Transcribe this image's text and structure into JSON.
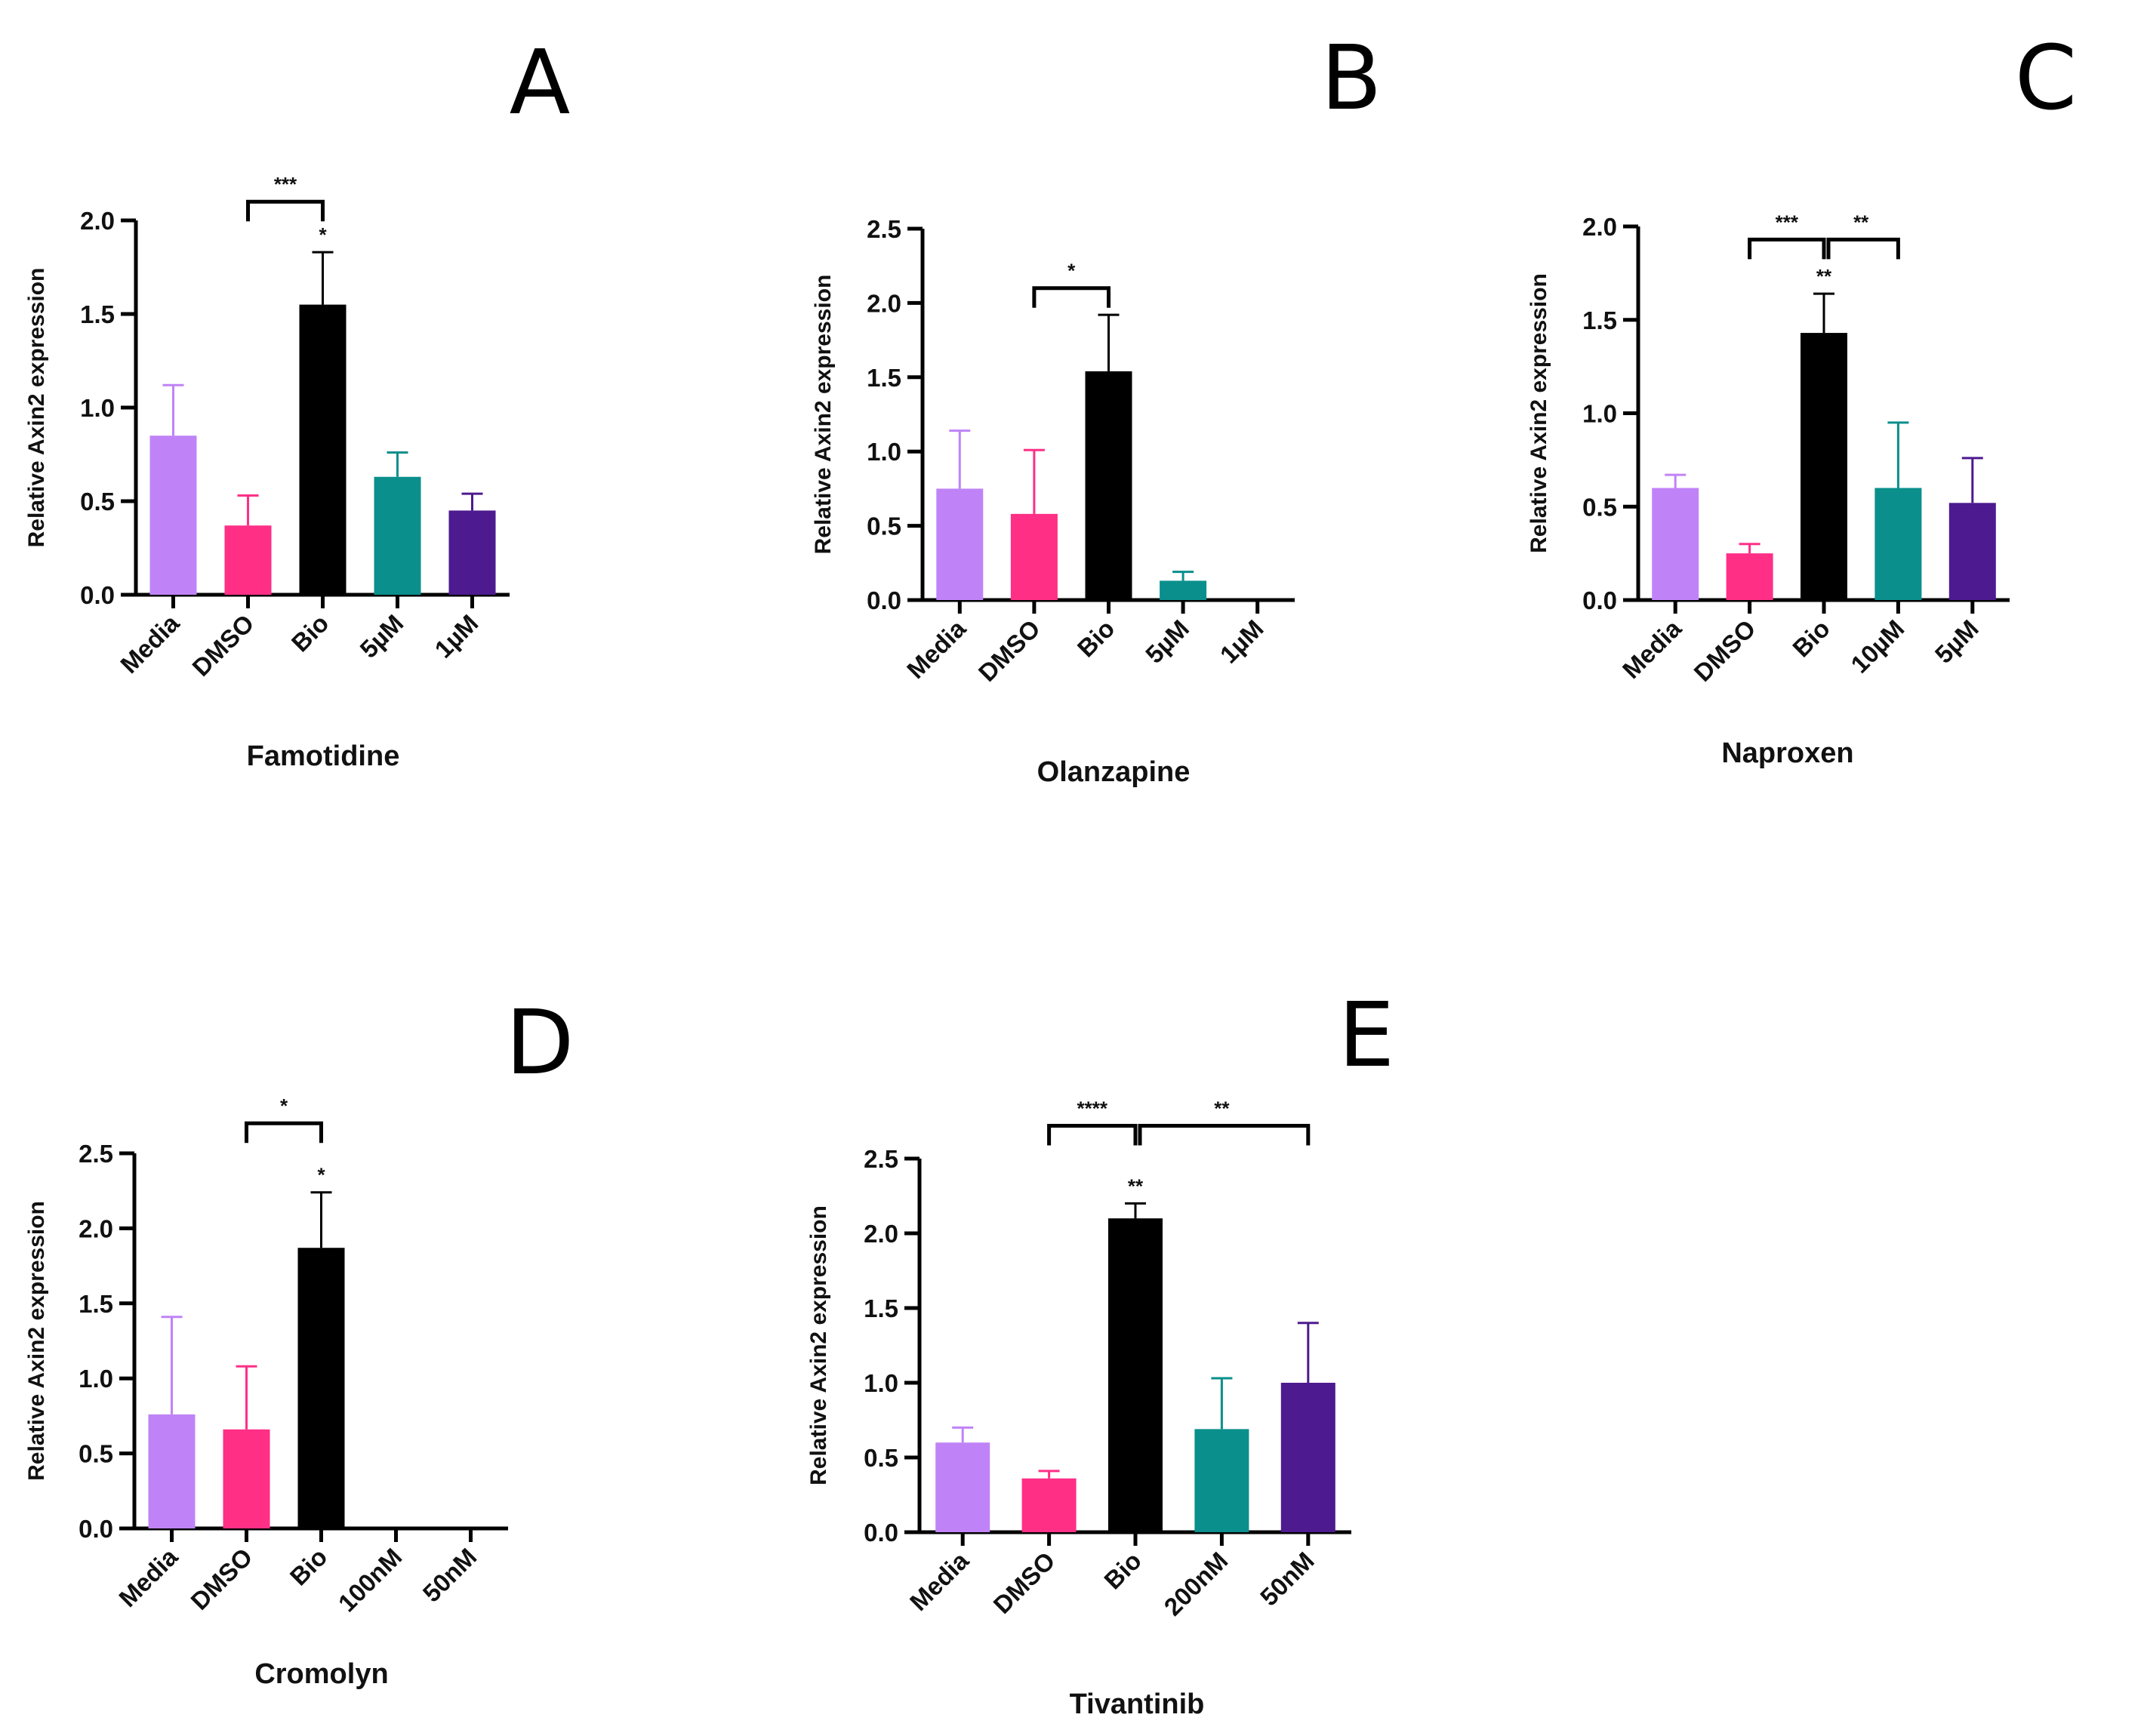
{
  "colors": {
    "Media": "#c083f7",
    "DMSO": "#ff2f86",
    "Bio": "#000000",
    "treat1": "#0a8f8c",
    "treat2": "#4d1a8f"
  },
  "chart_data": [
    {
      "id": "A",
      "type": "bar",
      "title": "Famotidine",
      "ylabel": "Relative Axin2 expression",
      "ylim": [
        0,
        2.0
      ],
      "yticks": [
        "0.0",
        "0.5",
        "1.0",
        "1.5",
        "2.0"
      ],
      "categories": [
        "Media",
        "DMSO",
        "Bio",
        "5µM",
        "1µM"
      ],
      "values": [
        0.85,
        0.37,
        1.55,
        0.63,
        0.45
      ],
      "errors": [
        0.27,
        0.16,
        0.28,
        0.13,
        0.09
      ],
      "color_keys": [
        "Media",
        "DMSO",
        "Bio",
        "treat1",
        "treat2"
      ],
      "bar_stars": [
        null,
        null,
        "*",
        null,
        null
      ],
      "brackets": [
        {
          "from": 1,
          "to": 2,
          "label": "***"
        }
      ]
    },
    {
      "id": "B",
      "type": "bar",
      "title": "Olanzapine",
      "ylabel": "Relative Axin2 expression",
      "ylim": [
        0,
        2.5
      ],
      "yticks": [
        "0.0",
        "0.5",
        "1.0",
        "1.5",
        "2.0",
        "2.5"
      ],
      "categories": [
        "Media",
        "DMSO",
        "Bio",
        "5µM",
        "1µM"
      ],
      "values": [
        0.75,
        0.58,
        1.54,
        0.13,
        0.0
      ],
      "errors": [
        0.39,
        0.43,
        0.38,
        0.06,
        0.0
      ],
      "color_keys": [
        "Media",
        "DMSO",
        "Bio",
        "treat1",
        "treat2"
      ],
      "bar_stars": [
        null,
        null,
        null,
        null,
        null
      ],
      "brackets": [
        {
          "from": 1,
          "to": 2,
          "label": "*"
        }
      ]
    },
    {
      "id": "C",
      "type": "bar",
      "title": "Naproxen",
      "ylabel": "Relative Axin2 expression",
      "ylim": [
        0,
        2.0
      ],
      "yticks": [
        "0.0",
        "0.5",
        "1.0",
        "1.5",
        "2.0"
      ],
      "categories": [
        "Media",
        "DMSO",
        "Bio",
        "10µM",
        "5µM"
      ],
      "values": [
        0.6,
        0.25,
        1.43,
        0.6,
        0.52
      ],
      "errors": [
        0.07,
        0.05,
        0.21,
        0.35,
        0.24
      ],
      "color_keys": [
        "Media",
        "DMSO",
        "Bio",
        "treat1",
        "treat2"
      ],
      "bar_stars": [
        null,
        null,
        "**",
        null,
        null
      ],
      "brackets": [
        {
          "from": 1,
          "to": 2,
          "label": "***"
        },
        {
          "from": 2,
          "to": 3,
          "label": "**"
        }
      ]
    },
    {
      "id": "D",
      "type": "bar",
      "title": "Cromolyn",
      "ylabel": "Relative Axin2 expression",
      "ylim": [
        0,
        2.5
      ],
      "yticks": [
        "0.0",
        "0.5",
        "1.0",
        "1.5",
        "2.0",
        "2.5"
      ],
      "categories": [
        "Media",
        "DMSO",
        "Bio",
        "100nM",
        "50nM"
      ],
      "values": [
        0.76,
        0.66,
        1.87,
        0.0,
        0.0
      ],
      "errors": [
        0.65,
        0.42,
        0.37,
        0.0,
        0.0
      ],
      "color_keys": [
        "Media",
        "DMSO",
        "Bio",
        "treat1",
        "treat2"
      ],
      "bar_stars": [
        null,
        null,
        "*",
        null,
        null
      ],
      "brackets": [
        {
          "from": 1,
          "to": 2,
          "label": "*"
        }
      ]
    },
    {
      "id": "E",
      "type": "bar",
      "title": "Tivantinib",
      "ylabel": "Relative Axin2 expression",
      "ylim": [
        0,
        2.5
      ],
      "yticks": [
        "0.0",
        "0.5",
        "1.0",
        "1.5",
        "2.0",
        "2.5"
      ],
      "categories": [
        "Media",
        "DMSO",
        "Bio",
        "200nM",
        "50nM"
      ],
      "values": [
        0.6,
        0.36,
        2.1,
        0.69,
        1.0
      ],
      "errors": [
        0.1,
        0.05,
        0.1,
        0.34,
        0.4
      ],
      "color_keys": [
        "Media",
        "DMSO",
        "Bio",
        "treat1",
        "treat2"
      ],
      "bar_stars": [
        null,
        null,
        "**",
        null,
        null
      ],
      "brackets": [
        {
          "from": 1,
          "to": 2,
          "label": "****"
        },
        {
          "from": 2,
          "to": 4,
          "label": "**"
        }
      ]
    }
  ]
}
